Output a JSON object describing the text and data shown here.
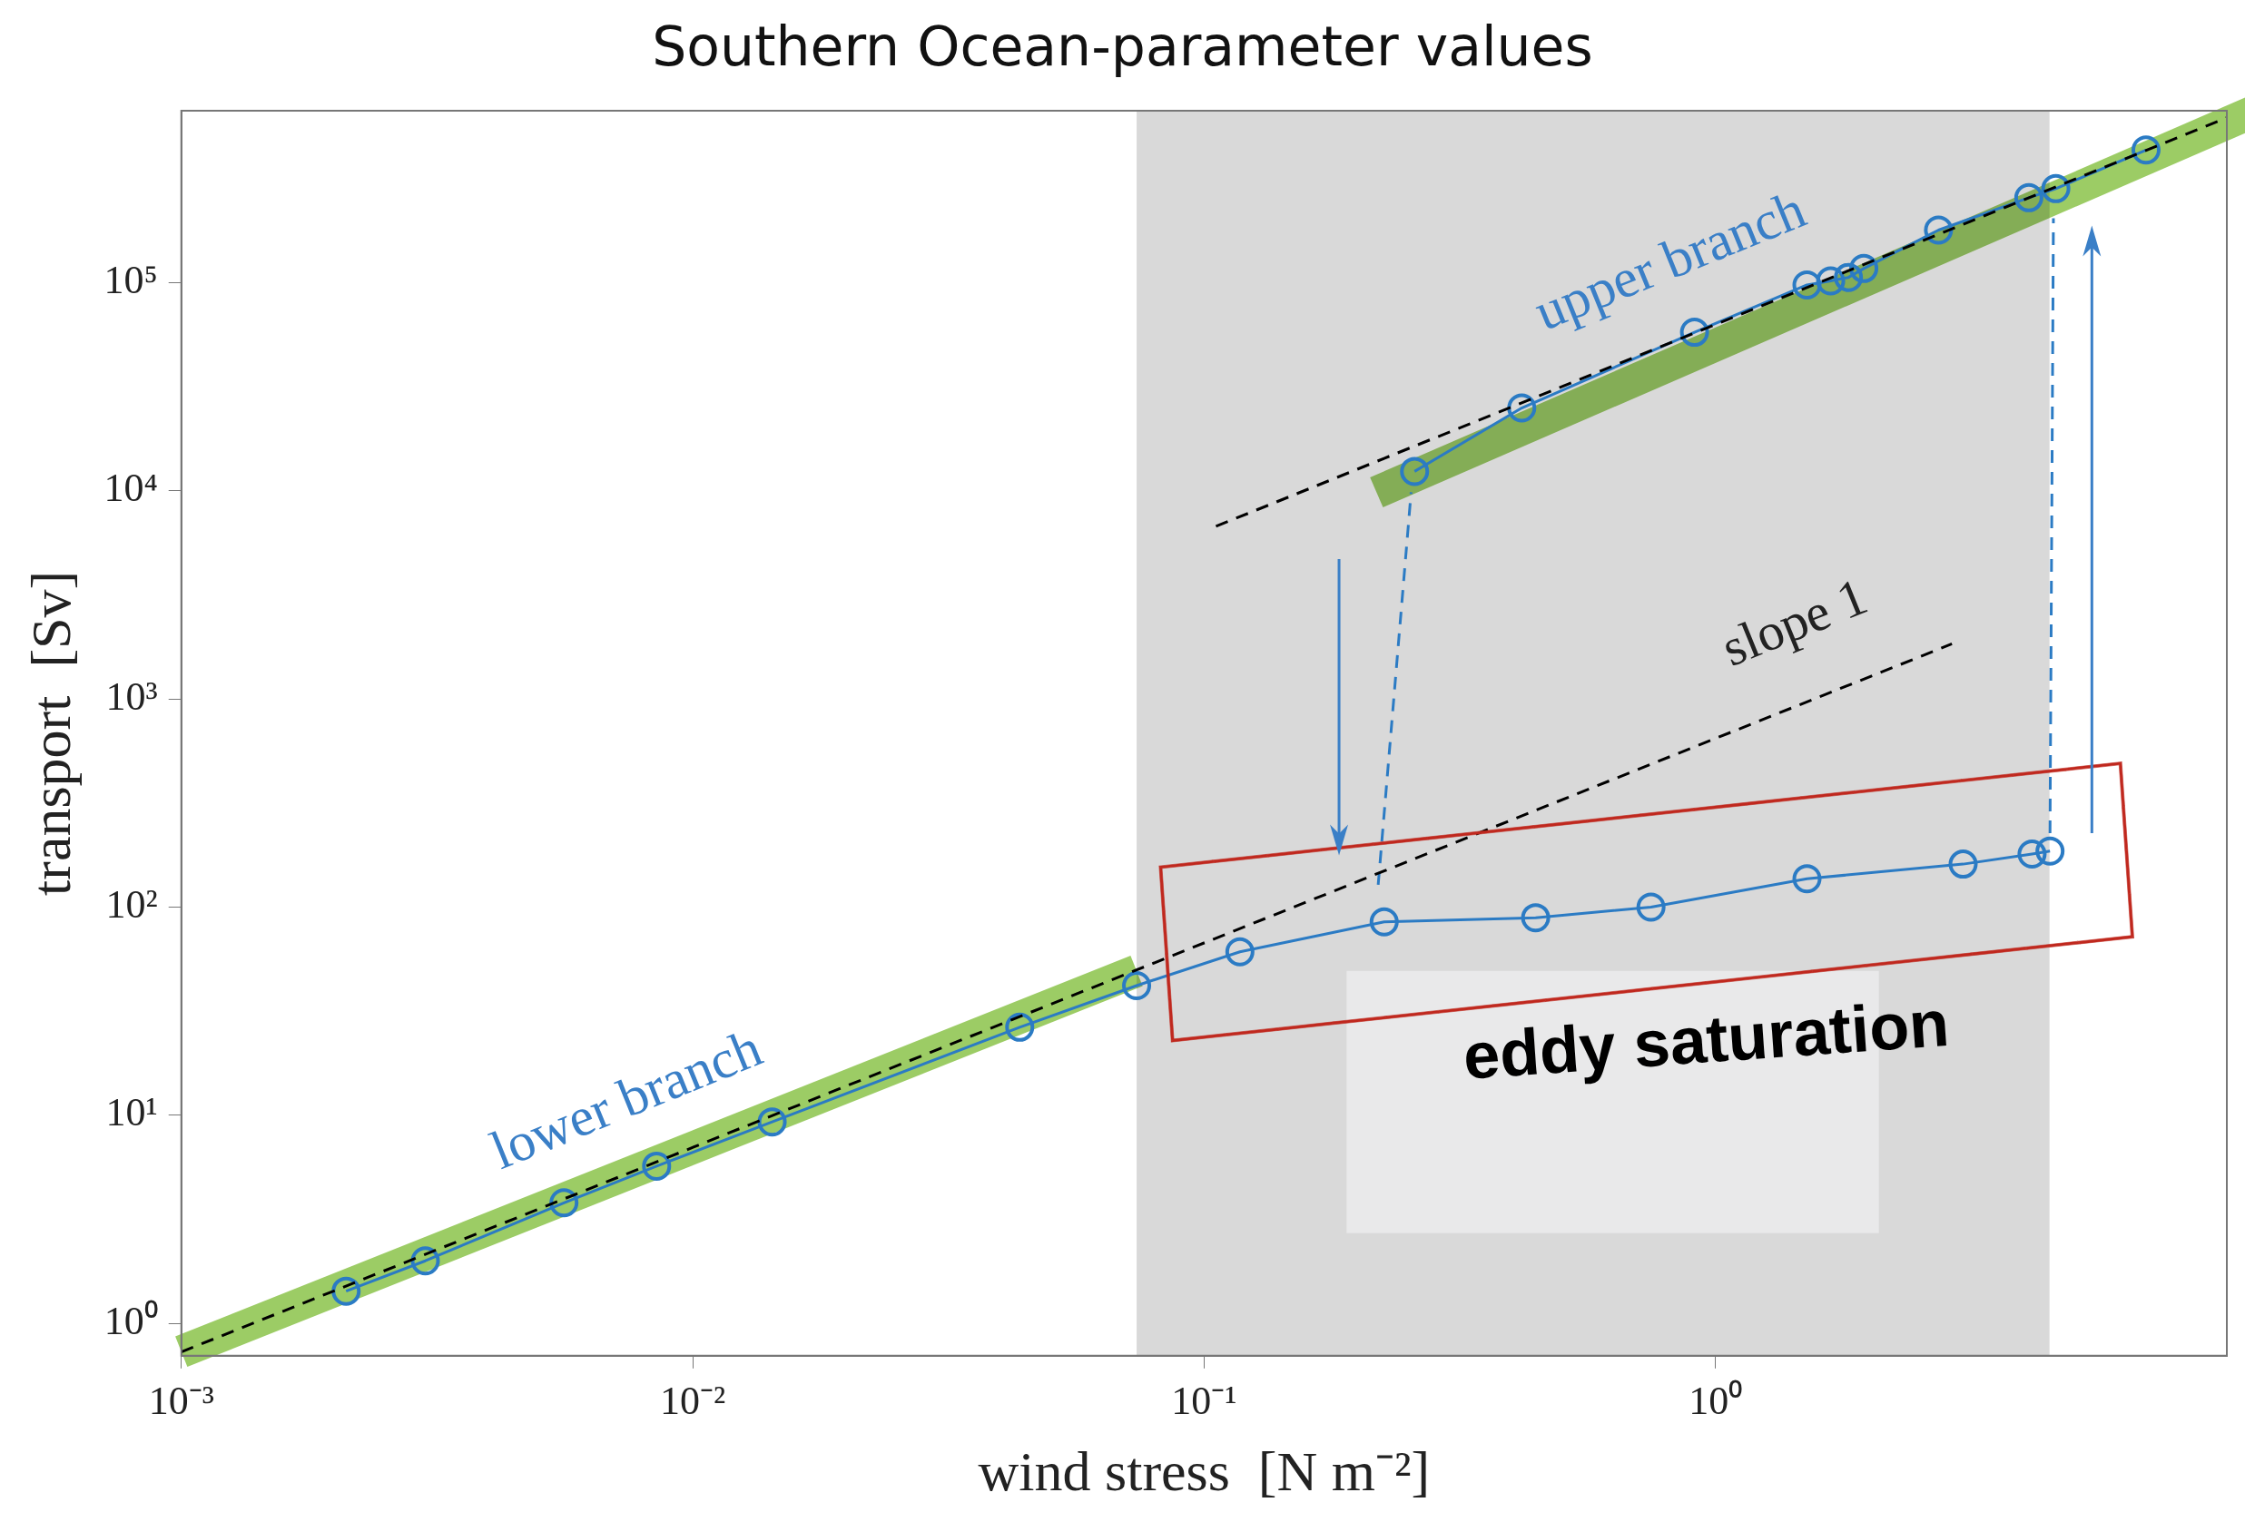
{
  "chart_data": {
    "type": "line",
    "title": "Southern Ocean-parameter values",
    "xlabel": "wind stress  [N m⁻²]",
    "ylabel": "transport  [Sv]",
    "log": "xy",
    "xlim": [
      0.001,
      10
    ],
    "ylim": [
      0.7,
      670000
    ],
    "xticks": [
      {
        "value": 0.001,
        "label": "10⁻³"
      },
      {
        "value": 0.01,
        "label": "10⁻²"
      },
      {
        "value": 0.1,
        "label": "10⁻¹"
      },
      {
        "value": 1,
        "label": "10⁰"
      }
    ],
    "yticks": [
      {
        "value": 1,
        "label": "10⁰"
      },
      {
        "value": 10,
        "label": "10¹"
      },
      {
        "value": 100,
        "label": "10²"
      },
      {
        "value": 1000,
        "label": "10³"
      },
      {
        "value": 10000,
        "label": "10⁴"
      },
      {
        "value": 100000,
        "label": "10⁵"
      }
    ],
    "bands": [
      {
        "axis": "x",
        "from": 0.0738,
        "to": 4.5,
        "color": "#d9d9d9"
      }
    ],
    "annotations": [
      "upper branch",
      "lower branch",
      "slope 1",
      "eddy saturation"
    ],
    "series": [
      {
        "type": "line",
        "color": "#000000",
        "line_style": "dashed",
        "marker": "none",
        "x": [
          0.001,
          2.9
        ],
        "values": [
          0.73,
          1840
        ]
      },
      {
        "type": "line",
        "color": "#000000",
        "line_style": "dashed",
        "marker": "none",
        "x": [
          0.1055,
          10
        ],
        "values": [
          6750,
          620000
        ]
      },
      {
        "type": "line",
        "color": "#2b7bc4",
        "line_style": "dashed",
        "marker": "none",
        "x": [
          0.219,
          0.254
        ],
        "values": [
          128,
          9840
        ]
      },
      {
        "type": "line",
        "color": "#2b7bc4",
        "line_style": "dashed",
        "marker": "none",
        "x": [
          4.51,
          4.58
        ],
        "values": [
          227,
          204000
        ]
      },
      {
        "type": "line",
        "color": "#2b7bc4",
        "line_style": "solid",
        "marker": "circle",
        "x": [
          0.0021,
          0.003,
          0.0056,
          0.0085,
          0.0143,
          0.0436,
          0.0738,
          0.1175,
          0.225,
          0.445,
          0.748,
          1.51,
          3.05,
          4.16,
          4.51
        ],
        "values": [
          1.43,
          2.0,
          3.8,
          5.7,
          9.3,
          26.5,
          42,
          61,
          85,
          89,
          100,
          137,
          161,
          180,
          186
        ]
      },
      {
        "type": "line",
        "color": "#2b7bc4",
        "line_style": "solid",
        "marker": "circle",
        "x": [
          0.258,
          0.418,
          0.91,
          1.51,
          1.68,
          1.82,
          1.95,
          2.73,
          4.1,
          4.63,
          6.95
        ],
        "values": [
          12400,
          25000,
          57800,
          97500,
          102000,
          106000,
          117000,
          179000,
          256000,
          283000,
          434000
        ]
      }
    ]
  }
}
